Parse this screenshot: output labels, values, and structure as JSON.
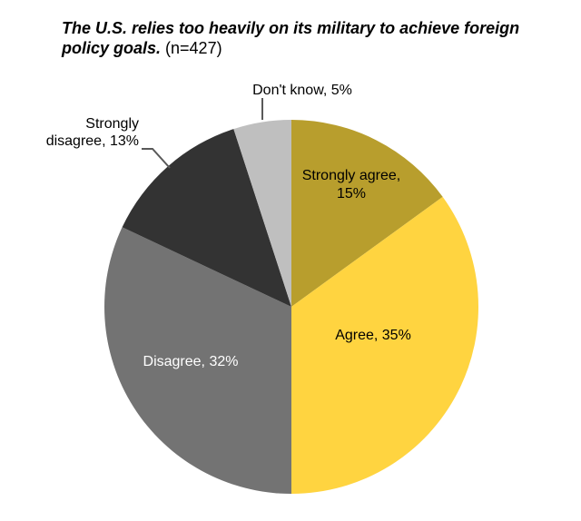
{
  "title": {
    "statement": "The U.S. relies too heavily on its military to achieve foreign policy goals.",
    "sample_size": "(n=427)"
  },
  "chart_data": {
    "type": "pie",
    "title": "The U.S. relies too heavily on its military to achieve foreign policy goals. (n=427)",
    "n": 427,
    "start_angle_deg": 0,
    "direction": "clockwise",
    "legend_position": "none",
    "slices": [
      {
        "id": "strongly-agree",
        "label": "Strongly agree",
        "value": 15,
        "color": "#B89E2D",
        "text_color": "#000000",
        "display_lines": [
          "Strongly agree,",
          "15%"
        ]
      },
      {
        "id": "agree",
        "label": "Agree",
        "value": 35,
        "color": "#FFD440",
        "text_color": "#000000",
        "display_lines": [
          "Agree, 35%"
        ]
      },
      {
        "id": "disagree",
        "label": "Disagree",
        "value": 32,
        "color": "#737373",
        "text_color": "#FFFFFF",
        "display_lines": [
          "Disagree, 32%"
        ]
      },
      {
        "id": "strongly-disagree",
        "label": "Strongly disagree",
        "value": 13,
        "color": "#333333",
        "text_color": "#000000",
        "display_lines": [
          "Strongly",
          "disagree, 13%"
        ]
      },
      {
        "id": "dont-know",
        "label": "Don't know",
        "value": 5,
        "color": "#BFBFBF",
        "text_color": "#000000",
        "display_lines": [
          "Don't know, 5%"
        ]
      }
    ],
    "leader_line_color": "#595959",
    "background_color": "#FFFFFF"
  }
}
